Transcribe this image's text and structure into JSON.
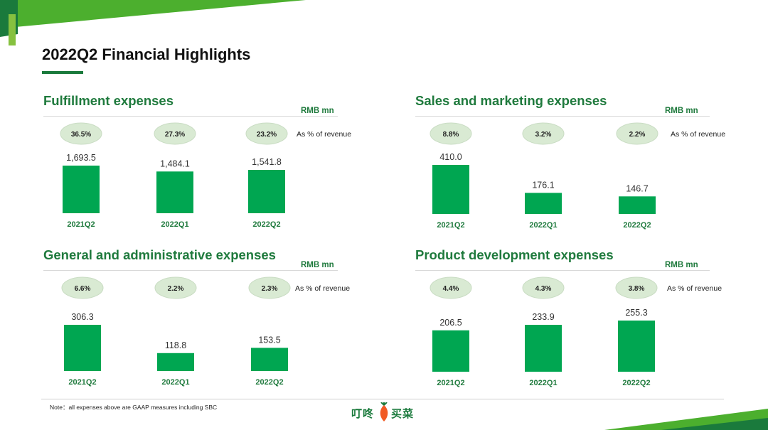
{
  "page": {
    "title": "2022Q2 Financial Highlights",
    "note": "Note：all expenses above are GAAP measures including SBC",
    "logo_left": "叮咚",
    "logo_right": "买菜",
    "colors": {
      "accent": "#1a7a3c",
      "bar": "#00a651",
      "bubble": "#d9ead3",
      "title": "#1f7a3d"
    }
  },
  "chart_data": [
    {
      "type": "bar",
      "title": "Fulfillment expenses",
      "unit": "RMB mn",
      "pct_label": "As % of revenue",
      "categories": [
        "2021Q2",
        "2022Q1",
        "2022Q2"
      ],
      "values": [
        1693.5,
        1484.1,
        1541.8
      ],
      "value_labels": [
        "1,693.5",
        "1,484.1",
        "1,541.8"
      ],
      "pcts": [
        "36.5%",
        "27.3%",
        "23.2%"
      ]
    },
    {
      "type": "bar",
      "title": "Sales and marketing expenses",
      "unit": "RMB mn",
      "pct_label": "As % of revenue",
      "categories": [
        "2021Q2",
        "2022Q1",
        "2022Q2"
      ],
      "values": [
        410.0,
        176.1,
        146.7
      ],
      "value_labels": [
        "410.0",
        "176.1",
        "146.7"
      ],
      "pcts": [
        "8.8%",
        "3.2%",
        "2.2%"
      ]
    },
    {
      "type": "bar",
      "title": "General and administrative expenses",
      "unit": "RMB mn",
      "pct_label": "As % of revenue",
      "categories": [
        "2021Q2",
        "2022Q1",
        "2022Q2"
      ],
      "values": [
        306.3,
        118.8,
        153.5
      ],
      "value_labels": [
        "306.3",
        "118.8",
        "153.5"
      ],
      "pcts": [
        "6.6%",
        "2.2%",
        "2.3%"
      ]
    },
    {
      "type": "bar",
      "title": "Product development expenses",
      "unit": "RMB mn",
      "pct_label": "As % of revenue",
      "categories": [
        "2021Q2",
        "2022Q1",
        "2022Q2"
      ],
      "values": [
        206.5,
        233.9,
        255.3
      ],
      "value_labels": [
        "206.5",
        "233.9",
        "255.3"
      ],
      "pcts": [
        "4.4%",
        "4.3%",
        "3.8%"
      ]
    }
  ]
}
